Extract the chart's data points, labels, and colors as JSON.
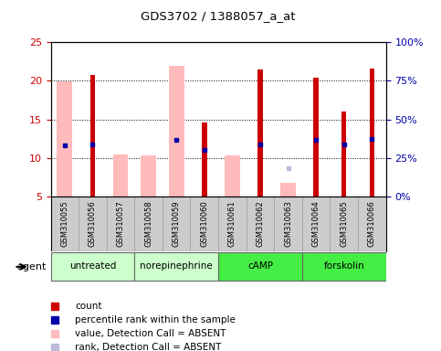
{
  "title": "GDS3702 / 1388057_a_at",
  "samples": [
    "GSM310055",
    "GSM310056",
    "GSM310057",
    "GSM310058",
    "GSM310059",
    "GSM310060",
    "GSM310061",
    "GSM310062",
    "GSM310063",
    "GSM310064",
    "GSM310065",
    "GSM310066"
  ],
  "red_bars": [
    null,
    20.8,
    null,
    null,
    null,
    14.6,
    null,
    21.5,
    null,
    20.4,
    16.0,
    21.6
  ],
  "pink_bars": [
    19.9,
    null,
    10.5,
    10.3,
    21.9,
    null,
    10.3,
    null,
    6.8,
    null,
    null,
    null
  ],
  "blue_squares_val": [
    11.6,
    11.7,
    null,
    null,
    12.3,
    11.0,
    null,
    11.8,
    null,
    12.3,
    11.7,
    12.5
  ],
  "lightblue_squares_val": [
    null,
    null,
    null,
    null,
    null,
    null,
    null,
    null,
    8.7,
    null,
    null,
    null
  ],
  "ylim_left": [
    5,
    25
  ],
  "ylim_right": [
    0,
    100
  ],
  "yticks_left": [
    5,
    10,
    15,
    20,
    25
  ],
  "ytick_labels_left": [
    "5",
    "10",
    "15",
    "20",
    "25"
  ],
  "yticks_right": [
    0,
    25,
    50,
    75,
    100
  ],
  "ytick_labels_right": [
    "0%",
    "25%",
    "50%",
    "75%",
    "100%"
  ],
  "hgrid_lines": [
    10,
    15,
    20
  ],
  "left_tick_color": "#cc0000",
  "right_tick_color": "#0000aa",
  "gray_area_color": "#cccccc",
  "group_defs": [
    {
      "label": "untreated",
      "color": "#ccffcc",
      "start": 0,
      "end": 2
    },
    {
      "label": "norepinephrine",
      "color": "#ccffcc",
      "start": 3,
      "end": 5
    },
    {
      "label": "cAMP",
      "color": "#44ee44",
      "start": 6,
      "end": 8
    },
    {
      "label": "forskolin",
      "color": "#44ee44",
      "start": 9,
      "end": 11
    }
  ],
  "agent_label": "agent",
  "legend_items": [
    {
      "color": "#cc0000",
      "label": "count"
    },
    {
      "color": "#0000aa",
      "label": "percentile rank within the sample"
    },
    {
      "color": "#ffbbbb",
      "label": "value, Detection Call = ABSENT"
    },
    {
      "color": "#bbbbdd",
      "label": "rank, Detection Call = ABSENT"
    }
  ]
}
